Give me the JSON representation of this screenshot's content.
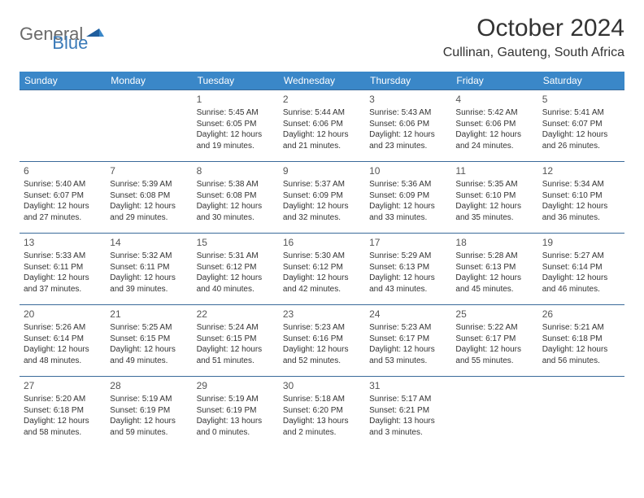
{
  "brand": {
    "part1": "General",
    "part2": "Blue"
  },
  "title": "October 2024",
  "location": "Cullinan, Gauteng, South Africa",
  "colors": {
    "header_bg": "#3a87c8",
    "header_text": "#ffffff",
    "row_border": "#3a6a9a",
    "text": "#333333",
    "logo_grey": "#6a6a6a",
    "logo_blue": "#3a7ab8",
    "background": "#ffffff"
  },
  "typography": {
    "title_fontsize": 30,
    "location_fontsize": 16,
    "dayheader_fontsize": 12,
    "daynum_fontsize": 12,
    "cell_fontsize": 10,
    "logo_fontsize": 22
  },
  "day_headers": [
    "Sunday",
    "Monday",
    "Tuesday",
    "Wednesday",
    "Thursday",
    "Friday",
    "Saturday"
  ],
  "weeks": [
    [
      null,
      null,
      {
        "n": "1",
        "sr": "5:45 AM",
        "ss": "6:05 PM",
        "dl1": "12 hours",
        "dl2": "and 19 minutes."
      },
      {
        "n": "2",
        "sr": "5:44 AM",
        "ss": "6:06 PM",
        "dl1": "12 hours",
        "dl2": "and 21 minutes."
      },
      {
        "n": "3",
        "sr": "5:43 AM",
        "ss": "6:06 PM",
        "dl1": "12 hours",
        "dl2": "and 23 minutes."
      },
      {
        "n": "4",
        "sr": "5:42 AM",
        "ss": "6:06 PM",
        "dl1": "12 hours",
        "dl2": "and 24 minutes."
      },
      {
        "n": "5",
        "sr": "5:41 AM",
        "ss": "6:07 PM",
        "dl1": "12 hours",
        "dl2": "and 26 minutes."
      }
    ],
    [
      {
        "n": "6",
        "sr": "5:40 AM",
        "ss": "6:07 PM",
        "dl1": "12 hours",
        "dl2": "and 27 minutes."
      },
      {
        "n": "7",
        "sr": "5:39 AM",
        "ss": "6:08 PM",
        "dl1": "12 hours",
        "dl2": "and 29 minutes."
      },
      {
        "n": "8",
        "sr": "5:38 AM",
        "ss": "6:08 PM",
        "dl1": "12 hours",
        "dl2": "and 30 minutes."
      },
      {
        "n": "9",
        "sr": "5:37 AM",
        "ss": "6:09 PM",
        "dl1": "12 hours",
        "dl2": "and 32 minutes."
      },
      {
        "n": "10",
        "sr": "5:36 AM",
        "ss": "6:09 PM",
        "dl1": "12 hours",
        "dl2": "and 33 minutes."
      },
      {
        "n": "11",
        "sr": "5:35 AM",
        "ss": "6:10 PM",
        "dl1": "12 hours",
        "dl2": "and 35 minutes."
      },
      {
        "n": "12",
        "sr": "5:34 AM",
        "ss": "6:10 PM",
        "dl1": "12 hours",
        "dl2": "and 36 minutes."
      }
    ],
    [
      {
        "n": "13",
        "sr": "5:33 AM",
        "ss": "6:11 PM",
        "dl1": "12 hours",
        "dl2": "and 37 minutes."
      },
      {
        "n": "14",
        "sr": "5:32 AM",
        "ss": "6:11 PM",
        "dl1": "12 hours",
        "dl2": "and 39 minutes."
      },
      {
        "n": "15",
        "sr": "5:31 AM",
        "ss": "6:12 PM",
        "dl1": "12 hours",
        "dl2": "and 40 minutes."
      },
      {
        "n": "16",
        "sr": "5:30 AM",
        "ss": "6:12 PM",
        "dl1": "12 hours",
        "dl2": "and 42 minutes."
      },
      {
        "n": "17",
        "sr": "5:29 AM",
        "ss": "6:13 PM",
        "dl1": "12 hours",
        "dl2": "and 43 minutes."
      },
      {
        "n": "18",
        "sr": "5:28 AM",
        "ss": "6:13 PM",
        "dl1": "12 hours",
        "dl2": "and 45 minutes."
      },
      {
        "n": "19",
        "sr": "5:27 AM",
        "ss": "6:14 PM",
        "dl1": "12 hours",
        "dl2": "and 46 minutes."
      }
    ],
    [
      {
        "n": "20",
        "sr": "5:26 AM",
        "ss": "6:14 PM",
        "dl1": "12 hours",
        "dl2": "and 48 minutes."
      },
      {
        "n": "21",
        "sr": "5:25 AM",
        "ss": "6:15 PM",
        "dl1": "12 hours",
        "dl2": "and 49 minutes."
      },
      {
        "n": "22",
        "sr": "5:24 AM",
        "ss": "6:15 PM",
        "dl1": "12 hours",
        "dl2": "and 51 minutes."
      },
      {
        "n": "23",
        "sr": "5:23 AM",
        "ss": "6:16 PM",
        "dl1": "12 hours",
        "dl2": "and 52 minutes."
      },
      {
        "n": "24",
        "sr": "5:23 AM",
        "ss": "6:17 PM",
        "dl1": "12 hours",
        "dl2": "and 53 minutes."
      },
      {
        "n": "25",
        "sr": "5:22 AM",
        "ss": "6:17 PM",
        "dl1": "12 hours",
        "dl2": "and 55 minutes."
      },
      {
        "n": "26",
        "sr": "5:21 AM",
        "ss": "6:18 PM",
        "dl1": "12 hours",
        "dl2": "and 56 minutes."
      }
    ],
    [
      {
        "n": "27",
        "sr": "5:20 AM",
        "ss": "6:18 PM",
        "dl1": "12 hours",
        "dl2": "and 58 minutes."
      },
      {
        "n": "28",
        "sr": "5:19 AM",
        "ss": "6:19 PM",
        "dl1": "12 hours",
        "dl2": "and 59 minutes."
      },
      {
        "n": "29",
        "sr": "5:19 AM",
        "ss": "6:19 PM",
        "dl1": "13 hours",
        "dl2": "and 0 minutes."
      },
      {
        "n": "30",
        "sr": "5:18 AM",
        "ss": "6:20 PM",
        "dl1": "13 hours",
        "dl2": "and 2 minutes."
      },
      {
        "n": "31",
        "sr": "5:17 AM",
        "ss": "6:21 PM",
        "dl1": "13 hours",
        "dl2": "and 3 minutes."
      },
      null,
      null
    ]
  ],
  "labels": {
    "sunrise": "Sunrise:",
    "sunset": "Sunset:",
    "daylight": "Daylight:"
  }
}
